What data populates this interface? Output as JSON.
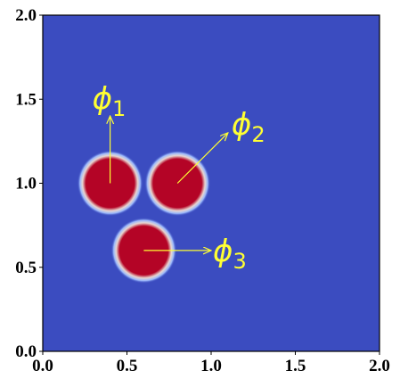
{
  "chart_data": {
    "type": "field",
    "background_color": "#3b4cc0",
    "mark_color": "#b40426",
    "circles": {
      "x": [
        0.4,
        0.8,
        0.6
      ],
      "y": [
        1.0,
        1.0,
        0.6
      ],
      "r": [
        0.15,
        0.15,
        0.15
      ]
    },
    "annotations": [
      {
        "symbol": "ϕ",
        "subscript": "1",
        "xy": [
          0.4,
          1.0
        ],
        "xytext": [
          0.4,
          1.4
        ]
      },
      {
        "symbol": "ϕ",
        "subscript": "2",
        "xy": [
          0.8,
          1.0
        ],
        "xytext": [
          1.1,
          1.3
        ]
      },
      {
        "symbol": "ϕ",
        "subscript": "3",
        "xy": [
          0.6,
          0.6
        ],
        "xytext": [
          1.0,
          0.6
        ]
      }
    ],
    "annotation_color": "#ffff33",
    "xlim": [
      0,
      2
    ],
    "ylim": [
      0,
      2
    ],
    "xticks": [
      {
        "value": 0,
        "label": "0.0"
      },
      {
        "value": 0.5,
        "label": "0.5"
      },
      {
        "value": 1,
        "label": "1.0"
      },
      {
        "value": 1.5,
        "label": "1.5"
      },
      {
        "value": 2,
        "label": "2.0"
      }
    ],
    "yticks": [
      {
        "value": 0,
        "label": "0.0"
      },
      {
        "value": 0.5,
        "label": "0.5"
      },
      {
        "value": 1,
        "label": "1.0"
      },
      {
        "value": 1.5,
        "label": "1.5"
      },
      {
        "value": 2,
        "label": "2.0"
      }
    ]
  }
}
